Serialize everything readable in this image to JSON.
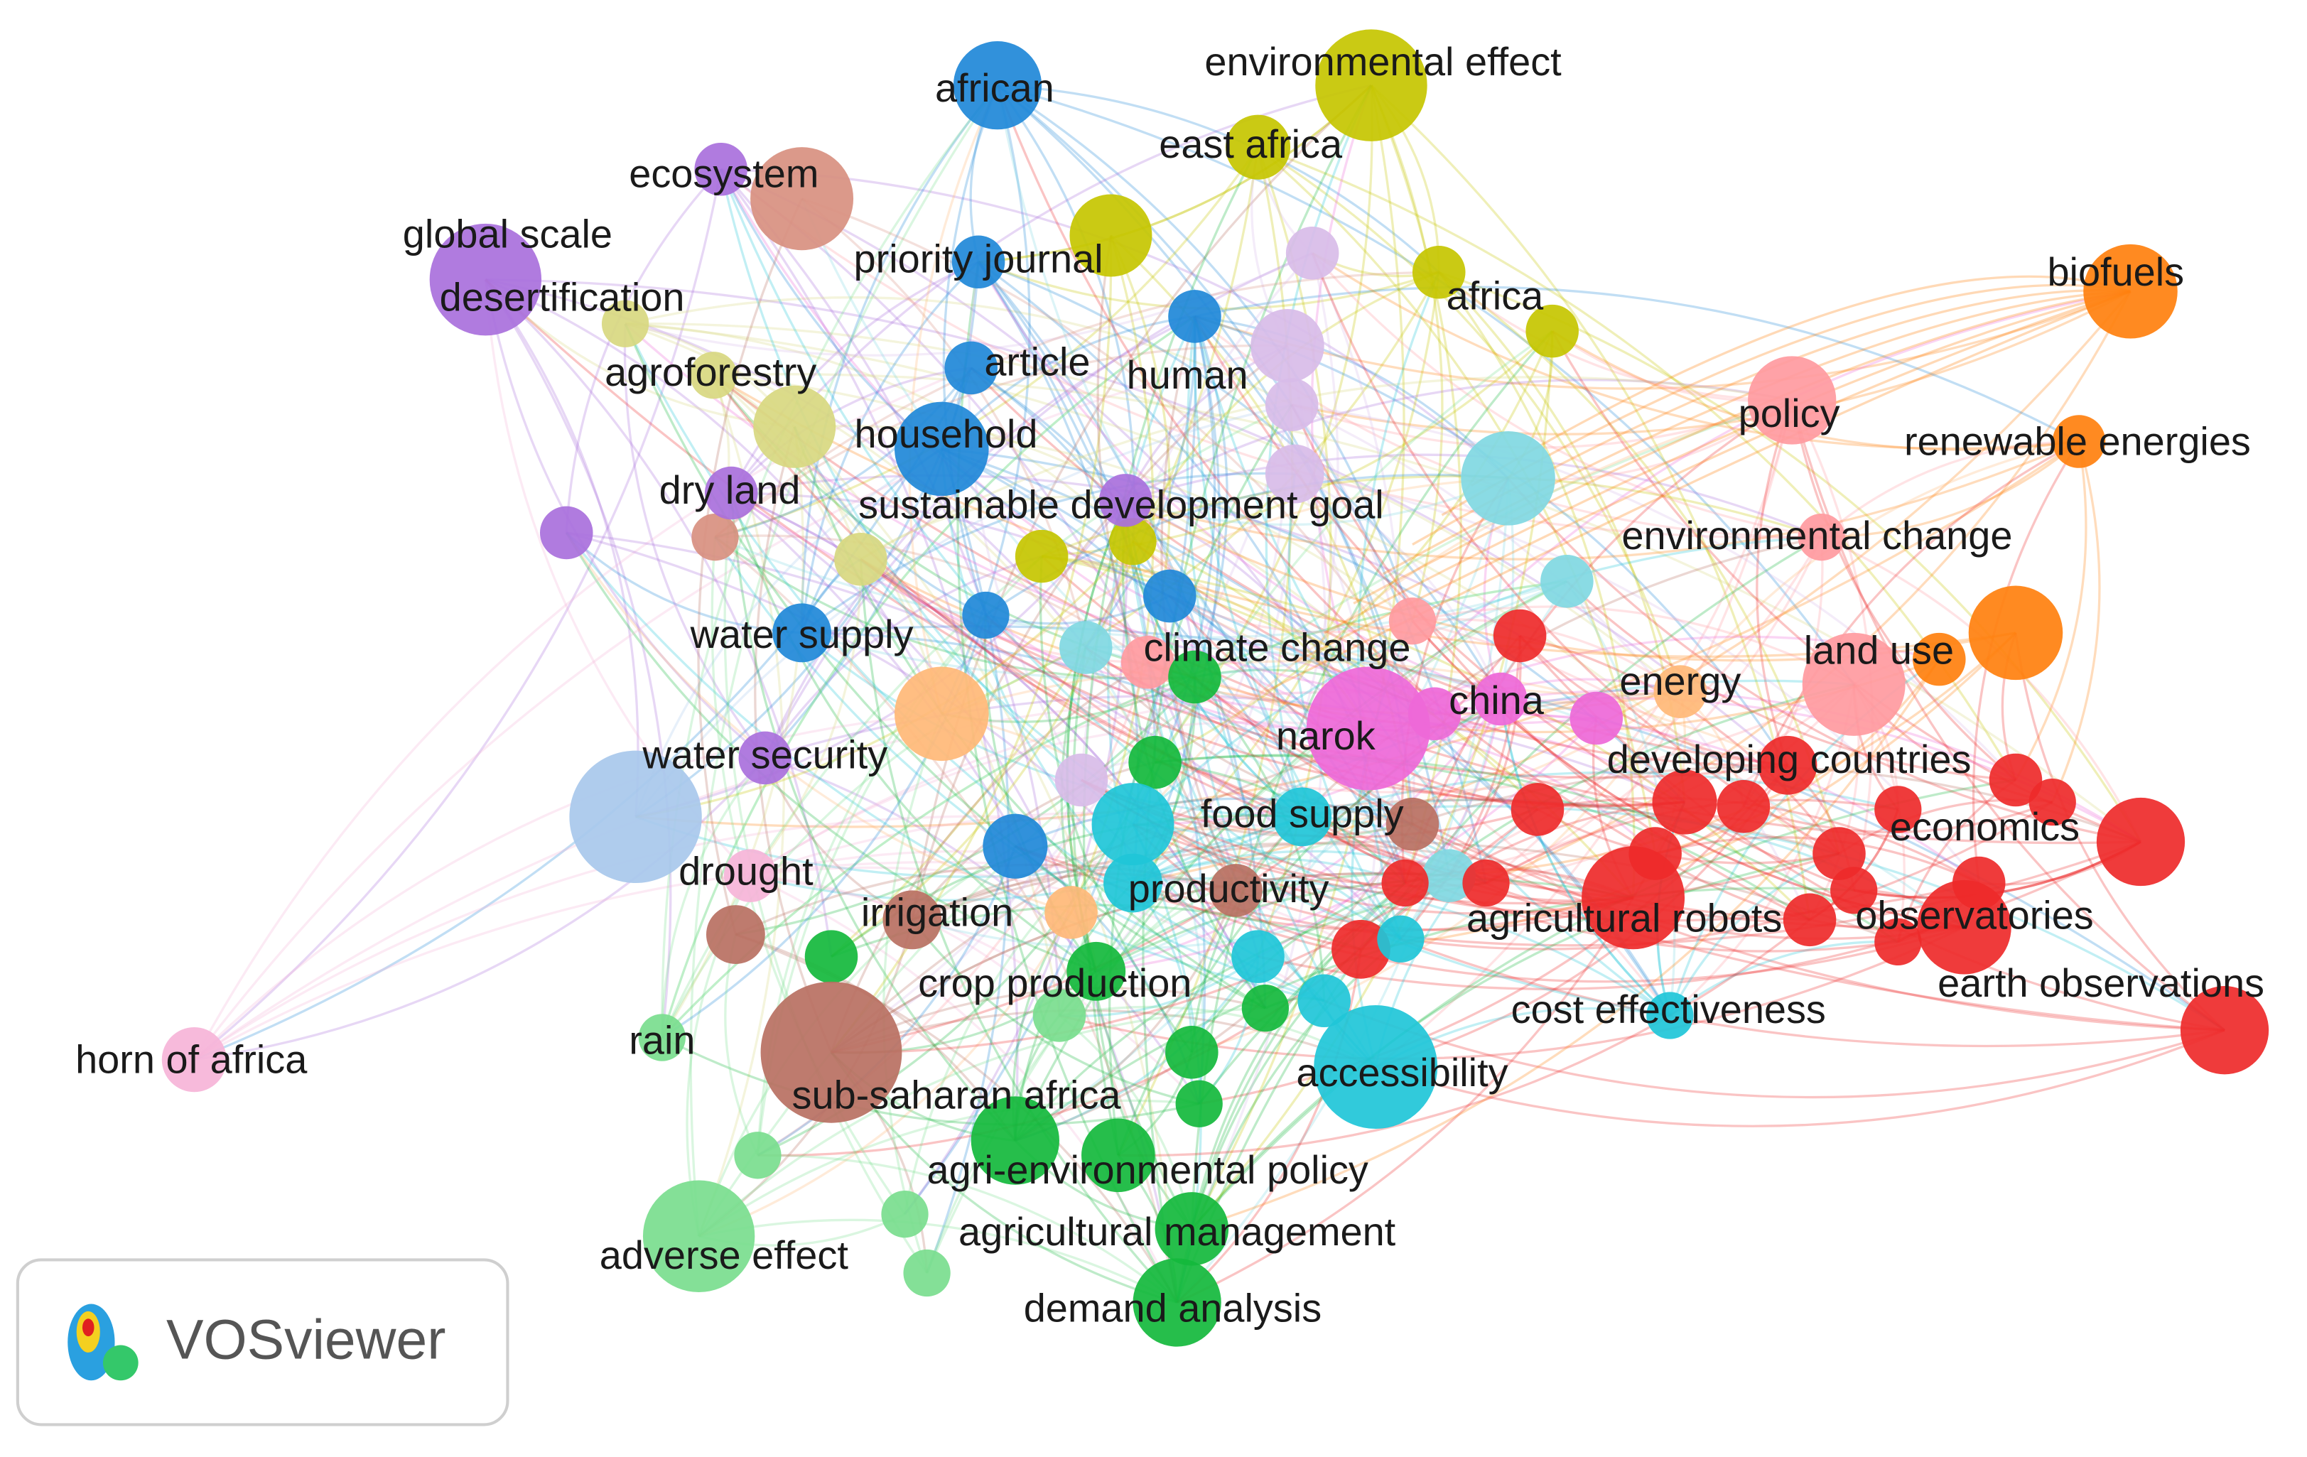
{
  "nodes": [
    {
      "label": "african"
    },
    {
      "label": "environmental effect"
    },
    {
      "label": "east africa"
    },
    {
      "label": "ecosystem"
    },
    {
      "label": "global scale"
    },
    {
      "label": "desertification"
    },
    {
      "label": "priority journal"
    },
    {
      "label": "africa"
    },
    {
      "label": "biofuels"
    },
    {
      "label": "agroforestry"
    },
    {
      "label": "article"
    },
    {
      "label": "human"
    },
    {
      "label": "household"
    },
    {
      "label": "policy"
    },
    {
      "label": "renewable energies"
    },
    {
      "label": "dry land"
    },
    {
      "label": "sustainable development goal"
    },
    {
      "label": "environmental change"
    },
    {
      "label": "water supply"
    },
    {
      "label": "climate change"
    },
    {
      "label": "china"
    },
    {
      "label": "energy"
    },
    {
      "label": "land use"
    },
    {
      "label": "narok"
    },
    {
      "label": "water security"
    },
    {
      "label": "developing countries"
    },
    {
      "label": "food supply"
    },
    {
      "label": "economics"
    },
    {
      "label": "drought"
    },
    {
      "label": "irrigation"
    },
    {
      "label": "productivity"
    },
    {
      "label": "agricultural robots"
    },
    {
      "label": "observatories"
    },
    {
      "label": "earth observations"
    },
    {
      "label": "crop production"
    },
    {
      "label": "cost effectiveness"
    },
    {
      "label": "horn of africa"
    },
    {
      "label": "rain"
    },
    {
      "label": "accessibility"
    },
    {
      "label": "sub-saharan africa"
    },
    {
      "label": "agri-environmental policy"
    },
    {
      "label": "agricultural management"
    },
    {
      "label": "adverse effect"
    },
    {
      "label": "demand analysis"
    }
  ],
  "logo": {
    "text": "VOSviewer"
  }
}
